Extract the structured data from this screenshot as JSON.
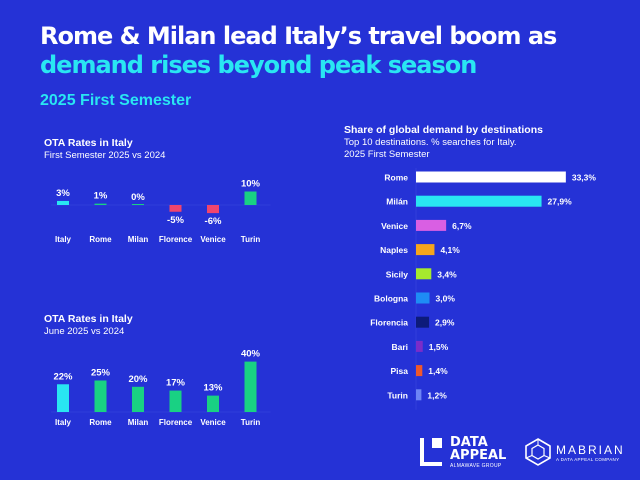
{
  "header": {
    "title_line1": "Rome & Milan lead Italy’s travel boom as",
    "title_line2": "demand rises beyond peak season",
    "period": "2025 First Semester"
  },
  "colors": {
    "background": "#2532d6",
    "accent_cyan": "#29e6f2",
    "accent_green": "#19d183",
    "negative_pink": "#f0456e"
  },
  "chart_data": [
    {
      "type": "bar",
      "title": "OTA Rates in Italy",
      "subtitle": "First Semester 2025 vs 2024",
      "categories": [
        "Italy",
        "Rome",
        "Milan",
        "Florence",
        "Venice",
        "Turin"
      ],
      "values": [
        3,
        1,
        0,
        -5,
        -6,
        10
      ],
      "data_labels": [
        "3%",
        "1%",
        "0%",
        "-5%",
        "-6%",
        "10%"
      ],
      "bar_colors": [
        "#29e6f2",
        "#19d183",
        "#19d183",
        "#f0456e",
        "#f0456e",
        "#19d183"
      ],
      "unit": "%"
    },
    {
      "type": "bar",
      "title": "OTA Rates in Italy",
      "subtitle": "June 2025 vs 2024",
      "categories": [
        "Italy",
        "Rome",
        "Milan",
        "Florence",
        "Venice",
        "Turin"
      ],
      "values": [
        22,
        25,
        20,
        17,
        13,
        40
      ],
      "data_labels": [
        "22%",
        "25%",
        "20%",
        "17%",
        "13%",
        "40%"
      ],
      "bar_colors": [
        "#29e6f2",
        "#19d183",
        "#19d183",
        "#19d183",
        "#19d183",
        "#19d183"
      ],
      "unit": "%"
    },
    {
      "type": "bar",
      "orientation": "horizontal",
      "title": "Share of global demand by destinations",
      "subtitle_lines": [
        "Top 10 destinations. % searches for Italy.",
        "2025 First Semester"
      ],
      "categories": [
        "Rome",
        "Milán",
        "Venice",
        "Naples",
        "Sicily",
        "Bologna",
        "Florencia",
        "Bari",
        "Pisa",
        "Turin"
      ],
      "values": [
        33.3,
        27.9,
        6.7,
        4.1,
        3.4,
        3.0,
        2.9,
        1.5,
        1.4,
        1.2
      ],
      "data_labels": [
        "33,3%",
        "27,9%",
        "6,7%",
        "4,1%",
        "3,4%",
        "3,0%",
        "2,9%",
        "1,5%",
        "1,4%",
        "1,2%"
      ],
      "bar_colors": [
        "#ffffff",
        "#29e6f2",
        "#d95fe3",
        "#f6a51c",
        "#a6ea2e",
        "#1e8cf5",
        "#0d1b7a",
        "#7b2cc9",
        "#f0582b",
        "#6d84f5"
      ],
      "unit": "%"
    }
  ],
  "logos": {
    "data_appeal_line1": "DATA",
    "data_appeal_line2": "APPEAL",
    "data_appeal_tag": "ALMAWAVE GROUP",
    "mabrian": "MABRIAN",
    "mabrian_tag": "A DATA APPEAL COMPANY"
  }
}
